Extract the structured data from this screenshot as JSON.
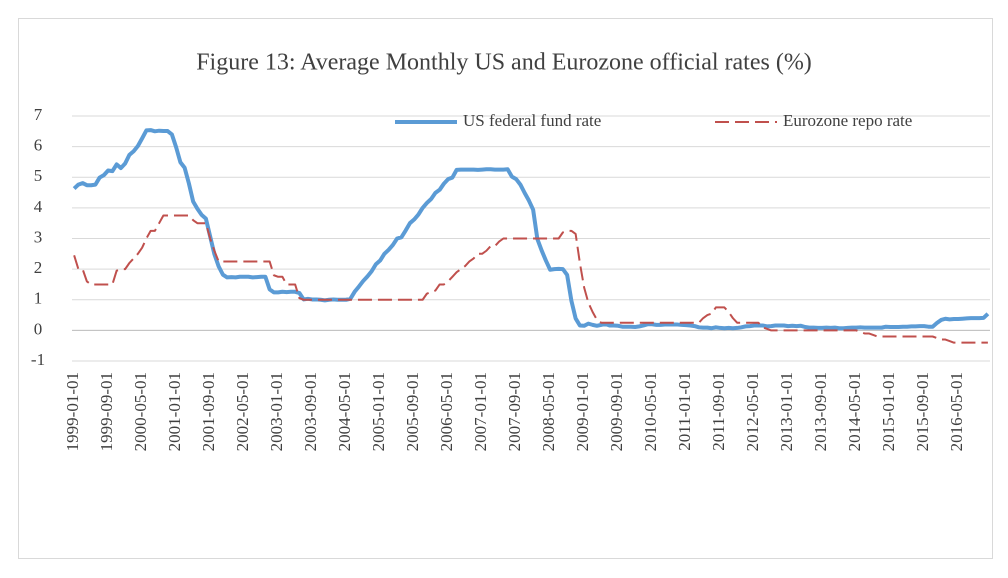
{
  "chart_data": {
    "type": "line",
    "title": "Figure 13: Average Monthly US and Eurozone official rates (%)",
    "categories": [
      "1999-01-01",
      null,
      null,
      null,
      null,
      null,
      null,
      null,
      "1999-09-01",
      null,
      null,
      null,
      null,
      null,
      null,
      null,
      "2000-05-01",
      null,
      null,
      null,
      null,
      null,
      null,
      null,
      "2001-01-01",
      null,
      null,
      null,
      null,
      null,
      null,
      null,
      "2001-09-01",
      null,
      null,
      null,
      null,
      null,
      null,
      null,
      "2002-05-01",
      null,
      null,
      null,
      null,
      null,
      null,
      null,
      "2003-01-01",
      null,
      null,
      null,
      null,
      null,
      null,
      null,
      "2003-09-01",
      null,
      null,
      null,
      null,
      null,
      null,
      null,
      "2004-05-01",
      null,
      null,
      null,
      null,
      null,
      null,
      null,
      "2005-01-01",
      null,
      null,
      null,
      null,
      null,
      null,
      null,
      "2005-09-01",
      null,
      null,
      null,
      null,
      null,
      null,
      null,
      "2006-05-01",
      null,
      null,
      null,
      null,
      null,
      null,
      null,
      "2007-01-01",
      null,
      null,
      null,
      null,
      null,
      null,
      null,
      "2007-09-01",
      null,
      null,
      null,
      null,
      null,
      null,
      null,
      "2008-05-01",
      null,
      null,
      null,
      null,
      null,
      null,
      null,
      "2009-01-01",
      null,
      null,
      null,
      null,
      null,
      null,
      null,
      "2009-09-01",
      null,
      null,
      null,
      null,
      null,
      null,
      null,
      "2010-05-01",
      null,
      null,
      null,
      null,
      null,
      null,
      null,
      "2011-01-01",
      null,
      null,
      null,
      null,
      null,
      null,
      null,
      "2011-09-01",
      null,
      null,
      null,
      null,
      null,
      null,
      null,
      "2012-05-01",
      null,
      null,
      null,
      null,
      null,
      null,
      null,
      "2013-01-01",
      null,
      null,
      null,
      null,
      null,
      null,
      null,
      "2013-09-01",
      null,
      null,
      null,
      null,
      null,
      null,
      null,
      "2014-05-01",
      null,
      null,
      null,
      null,
      null,
      null,
      null,
      "2015-01-01",
      null,
      null,
      null,
      null,
      null,
      null,
      null,
      "2015-09-01",
      null,
      null,
      null,
      null,
      null,
      null,
      null,
      "2016-05-01",
      null,
      null,
      null,
      null,
      null,
      null,
      null
    ],
    "series": [
      {
        "name": "US federal fund rate",
        "color": "#5b9bd5",
        "style": "solid",
        "values": [
          4.63,
          4.76,
          4.81,
          4.74,
          4.74,
          4.76,
          4.99,
          5.07,
          5.22,
          5.2,
          5.42,
          5.3,
          5.45,
          5.73,
          5.85,
          6.02,
          6.27,
          6.53,
          6.54,
          6.5,
          6.52,
          6.51,
          6.51,
          6.4,
          5.98,
          5.49,
          5.31,
          4.8,
          4.21,
          3.97,
          3.77,
          3.65,
          3.07,
          2.49,
          2.09,
          1.82,
          1.73,
          1.74,
          1.73,
          1.75,
          1.75,
          1.75,
          1.73,
          1.74,
          1.75,
          1.75,
          1.34,
          1.24,
          1.24,
          1.26,
          1.25,
          1.26,
          1.26,
          1.22,
          1.01,
          1.03,
          1.01,
          1.01,
          1.0,
          0.98,
          1.0,
          1.01,
          1.0,
          1.0,
          1.0,
          1.03,
          1.26,
          1.43,
          1.61,
          1.76,
          1.93,
          2.16,
          2.28,
          2.5,
          2.63,
          2.79,
          3.0,
          3.04,
          3.26,
          3.5,
          3.62,
          3.78,
          4.0,
          4.16,
          4.29,
          4.49,
          4.59,
          4.79,
          4.94,
          4.99,
          5.24,
          5.25,
          5.25,
          5.25,
          5.25,
          5.24,
          5.25,
          5.26,
          5.26,
          5.25,
          5.25,
          5.25,
          5.26,
          5.02,
          4.94,
          4.76,
          4.49,
          4.24,
          3.94,
          2.98,
          2.61,
          2.28,
          1.98,
          2.0,
          2.01,
          2.0,
          1.81,
          0.97,
          0.39,
          0.16,
          0.15,
          0.22,
          0.18,
          0.15,
          0.18,
          0.21,
          0.16,
          0.16,
          0.15,
          0.12,
          0.12,
          0.12,
          0.11,
          0.13,
          0.16,
          0.2,
          0.2,
          0.18,
          0.18,
          0.19,
          0.19,
          0.19,
          0.19,
          0.18,
          0.17,
          0.16,
          0.14,
          0.1,
          0.09,
          0.09,
          0.07,
          0.1,
          0.08,
          0.07,
          0.08,
          0.07,
          0.08,
          0.1,
          0.13,
          0.14,
          0.16,
          0.16,
          0.16,
          0.13,
          0.14,
          0.16,
          0.16,
          0.16,
          0.14,
          0.15,
          0.14,
          0.15,
          0.11,
          0.09,
          0.09,
          0.08,
          0.08,
          0.09,
          0.08,
          0.09,
          0.07,
          0.07,
          0.08,
          0.09,
          0.09,
          0.1,
          0.09,
          0.09,
          0.09,
          0.09,
          0.09,
          0.12,
          0.11,
          0.11,
          0.11,
          0.12,
          0.12,
          0.13,
          0.13,
          0.14,
          0.14,
          0.12,
          0.12,
          0.24,
          0.34,
          0.38,
          0.36,
          0.37,
          0.37,
          0.38,
          0.39,
          0.4,
          0.4,
          0.4,
          0.41,
          0.54
        ]
      },
      {
        "name": "Eurozone repo rate",
        "color": "#c0504d",
        "style": "dashed",
        "values": [
          2.45,
          2.0,
          2.0,
          1.6,
          1.5,
          1.5,
          1.5,
          1.5,
          1.5,
          1.5,
          1.95,
          2.0,
          2.0,
          2.2,
          2.35,
          2.5,
          2.7,
          3.0,
          3.25,
          3.25,
          3.5,
          3.75,
          3.75,
          3.75,
          3.75,
          3.75,
          3.75,
          3.75,
          3.6,
          3.5,
          3.5,
          3.5,
          3.0,
          2.6,
          2.25,
          2.25,
          2.25,
          2.25,
          2.25,
          2.25,
          2.25,
          2.25,
          2.25,
          2.25,
          2.25,
          2.25,
          2.25,
          1.8,
          1.75,
          1.75,
          1.5,
          1.5,
          1.5,
          1.05,
          1.0,
          1.0,
          1.0,
          1.0,
          1.0,
          1.0,
          1.0,
          1.0,
          1.0,
          1.0,
          1.0,
          1.0,
          1.0,
          1.0,
          1.0,
          1.0,
          1.0,
          1.0,
          1.0,
          1.0,
          1.0,
          1.0,
          1.0,
          1.0,
          1.0,
          1.0,
          1.0,
          1.0,
          1.0,
          1.2,
          1.25,
          1.3,
          1.5,
          1.5,
          1.6,
          1.75,
          1.9,
          2.0,
          2.1,
          2.25,
          2.35,
          2.5,
          2.5,
          2.6,
          2.75,
          2.75,
          2.9,
          3.0,
          3.0,
          3.0,
          3.0,
          3.0,
          3.0,
          3.0,
          3.0,
          3.0,
          3.0,
          3.0,
          3.0,
          3.0,
          3.0,
          3.2,
          3.25,
          3.25,
          3.15,
          2.2,
          1.4,
          0.9,
          0.6,
          0.35,
          0.25,
          0.25,
          0.25,
          0.25,
          0.25,
          0.25,
          0.25,
          0.25,
          0.25,
          0.25,
          0.25,
          0.25,
          0.25,
          0.25,
          0.25,
          0.25,
          0.25,
          0.25,
          0.25,
          0.25,
          0.25,
          0.25,
          0.25,
          0.25,
          0.4,
          0.5,
          0.55,
          0.75,
          0.75,
          0.75,
          0.6,
          0.4,
          0.25,
          0.25,
          0.25,
          0.25,
          0.25,
          0.25,
          0.1,
          0.05,
          0,
          0,
          0,
          0,
          0,
          0,
          0,
          0,
          0,
          0,
          0,
          0,
          0,
          0,
          0,
          0,
          0,
          0,
          0,
          0,
          0,
          -0.05,
          -0.1,
          -0.1,
          -0.15,
          -0.2,
          -0.2,
          -0.2,
          -0.2,
          -0.2,
          -0.2,
          -0.2,
          -0.2,
          -0.2,
          -0.2,
          -0.2,
          -0.2,
          -0.2,
          -0.2,
          -0.25,
          -0.3,
          -0.3,
          -0.35,
          -0.4,
          -0.4,
          -0.4,
          -0.4,
          -0.4,
          -0.4,
          -0.4,
          -0.4,
          -0.4
        ]
      }
    ],
    "ylim": [
      -1,
      7
    ],
    "yticks": [
      -1,
      0,
      1,
      2,
      3,
      4,
      5,
      6,
      7
    ],
    "grid": true,
    "legend": "top-right"
  }
}
